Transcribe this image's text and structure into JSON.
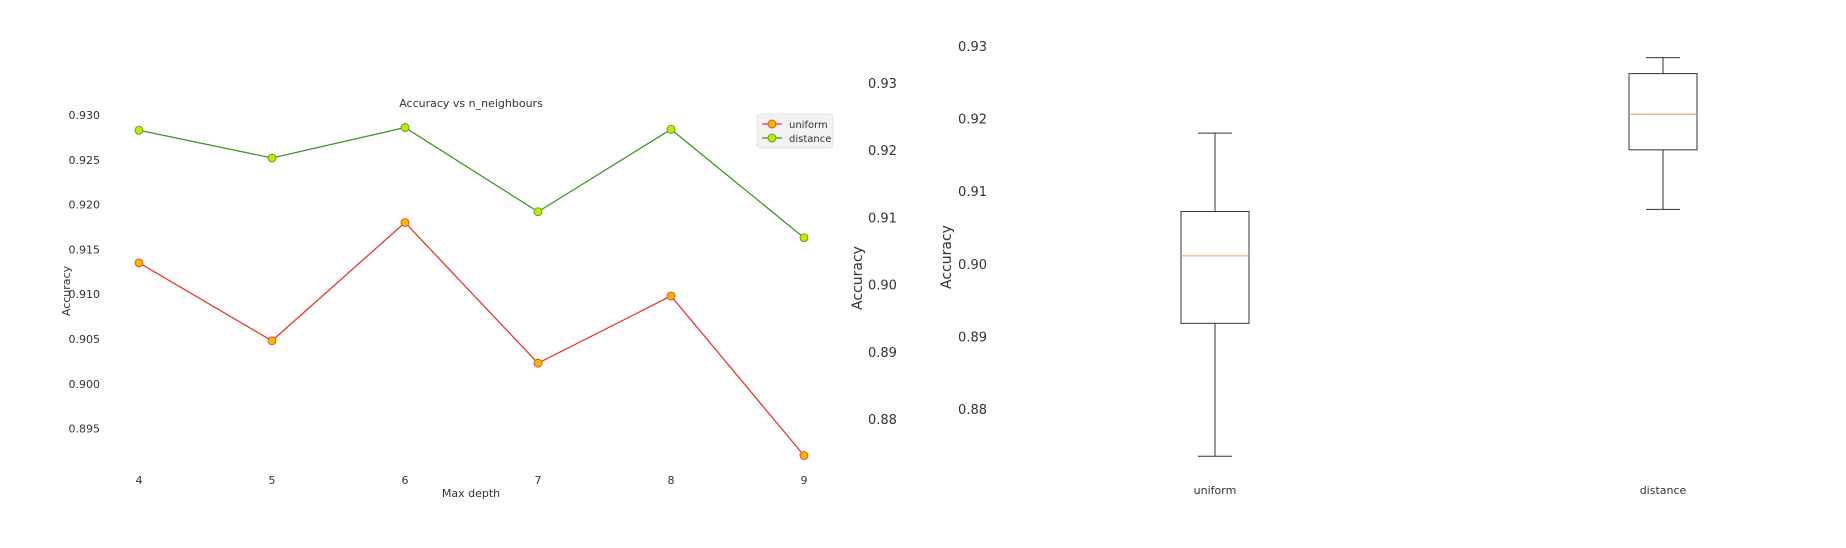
{
  "chart_data": [
    {
      "type": "line",
      "title": "Accuracy vs n_neighbours",
      "xlabel": "Max depth",
      "ylabel": "Accuracy",
      "x": [
        4,
        5,
        6,
        7,
        8,
        9
      ],
      "xticks": [
        "4",
        "5",
        "6",
        "7",
        "8",
        "9"
      ],
      "yticks": [
        "0.895",
        "0.900",
        "0.905",
        "0.910",
        "0.915",
        "0.920",
        "0.925",
        "0.930"
      ],
      "ylim": [
        0.8915,
        0.9325
      ],
      "grid": false,
      "legend_position": "top-right",
      "series": [
        {
          "name": "uniform",
          "color": "#e8382c",
          "marker_fill": "#f5b800",
          "values": [
            0.9135,
            0.9048,
            0.918,
            0.9023,
            0.9098,
            0.892
          ]
        },
        {
          "name": "distance",
          "color": "#3a9a23",
          "marker_fill": "#c8e600",
          "values": [
            0.9283,
            0.9252,
            0.9286,
            0.9192,
            0.9284,
            0.9163
          ]
        }
      ]
    },
    {
      "type": "box",
      "title": "",
      "xlabel": "",
      "ylabel": "Accuracy",
      "ylim": [
        0.87,
        0.935
      ],
      "yticks": [
        "0.88",
        "0.89",
        "0.90",
        "0.91",
        "0.92",
        "0.93"
      ],
      "secondary_ylabel": "Accuracy",
      "secondary_yticks": [
        "0.88",
        "0.89",
        "0.90",
        "0.91",
        "0.92",
        "0.93"
      ],
      "secondary_ylim": [
        0.8725,
        0.9375
      ],
      "grid": false,
      "median_color": "#f4a582",
      "categories": [
        "uniform",
        "distance"
      ],
      "boxes": [
        {
          "name": "uniform",
          "whisker_low": 0.8735,
          "q1": 0.8918,
          "median": 0.9011,
          "q3": 0.9072,
          "whisker_high": 0.918
        },
        {
          "name": "distance",
          "whisker_low": 0.9075,
          "q1": 0.9157,
          "median": 0.9206,
          "q3": 0.9262,
          "whisker_high": 0.9284
        }
      ]
    }
  ]
}
